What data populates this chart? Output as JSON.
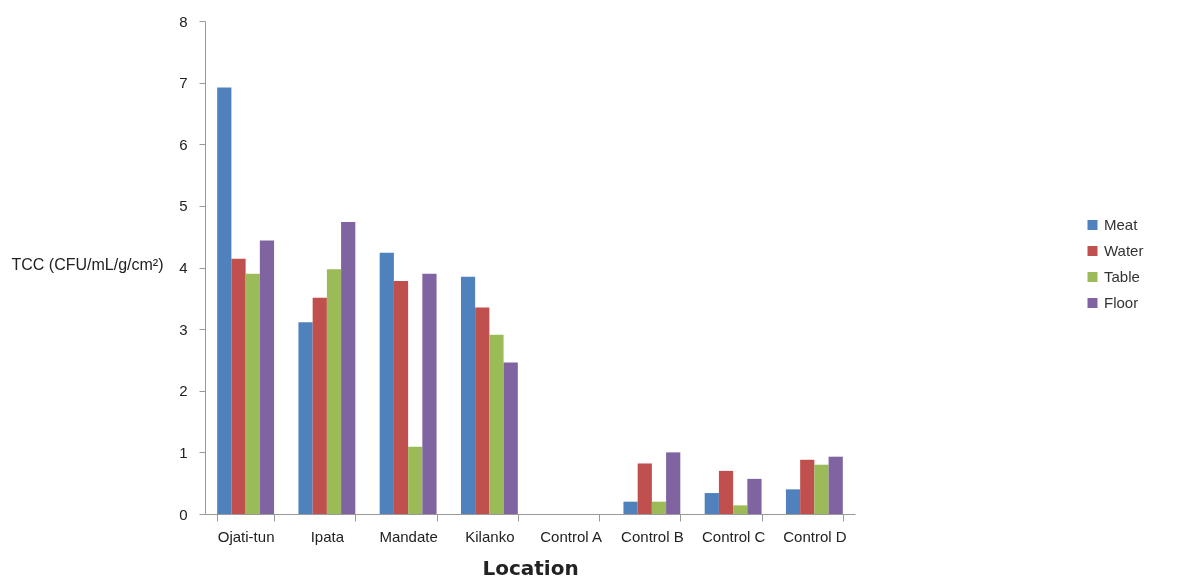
{
  "chart_data": {
    "type": "bar",
    "xlabel": "Location",
    "ylabel": "TCC (CFU/mL/g/cm²)",
    "categories": [
      "Ojati-tun",
      "Ipata",
      "Mandate",
      "Kilanko",
      "Control A",
      "Control B",
      "Control C",
      "Control D"
    ],
    "series": [
      {
        "name": "Meat",
        "color": "#4f81bd",
        "values": [
          6.92,
          3.11,
          4.24,
          3.85,
          0,
          0.2,
          0.34,
          0.4
        ]
      },
      {
        "name": "Water",
        "color": "#c0504d",
        "values": [
          4.14,
          3.51,
          3.78,
          3.35,
          0,
          0.82,
          0.7,
          0.88
        ]
      },
      {
        "name": "Table",
        "color": "#9bbb59",
        "values": [
          3.9,
          3.97,
          1.09,
          2.91,
          0,
          0.2,
          0.14,
          0.8
        ]
      },
      {
        "name": "Floor",
        "color": "#8064a2",
        "values": [
          4.44,
          4.74,
          3.9,
          2.46,
          0,
          1.0,
          0.57,
          0.93
        ]
      }
    ],
    "ylim": [
      0,
      8
    ],
    "yticks": [
      0,
      1,
      2,
      3,
      4,
      5,
      6,
      7,
      8
    ],
    "grid": false,
    "legend": "right"
  }
}
